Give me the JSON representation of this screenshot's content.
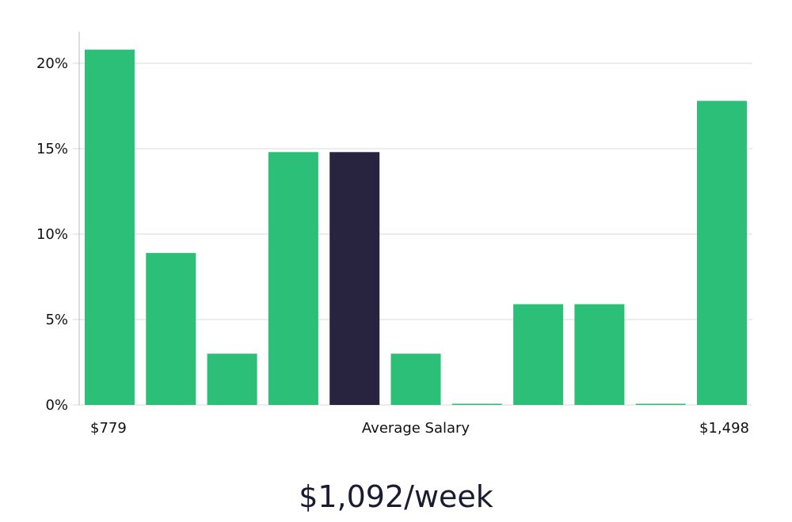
{
  "chart_data": {
    "type": "bar",
    "values": [
      20.8,
      8.9,
      3.0,
      14.8,
      14.8,
      3.0,
      0.0,
      5.9,
      5.9,
      0.0,
      17.8
    ],
    "highlight_index": 4,
    "y_ticks": [
      "0%",
      "5%",
      "10%",
      "15%",
      "20%"
    ],
    "y_tick_values": [
      0,
      5,
      10,
      15,
      20
    ],
    "ylim": [
      0,
      22
    ],
    "x_min_label": "$779",
    "x_center_label": "Average Salary",
    "x_max_label": "$1,498",
    "grid": true,
    "colors": {
      "bar": "#2bbf77",
      "highlight": "#28243f",
      "grid": "#d9d9d9",
      "axis": "#bbbbbb"
    }
  },
  "summary": {
    "salary": "$1,092/week"
  }
}
